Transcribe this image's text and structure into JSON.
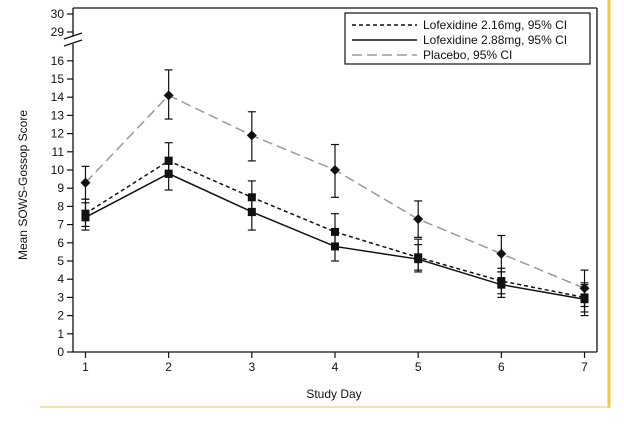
{
  "colors": {
    "background": "#ffffff",
    "frame": "#111111",
    "right_accent_border": "#f2c744",
    "bottom_accent_line": "#f6dc7e"
  },
  "chart_data": {
    "type": "line",
    "title": "",
    "xlabel": "Study Day",
    "ylabel": "Mean SOWS-Gossop Score",
    "x": [
      1,
      2,
      3,
      4,
      5,
      6,
      7
    ],
    "xlim": [
      0.85,
      7.15
    ],
    "ylim": [
      0,
      30
    ],
    "y_axis_break": [
      16,
      29
    ],
    "yticks_lower": [
      0,
      1,
      2,
      3,
      4,
      5,
      6,
      7,
      8,
      9,
      10,
      11,
      12,
      13,
      14,
      15,
      16
    ],
    "yticks_upper": [
      29,
      30
    ],
    "grid": false,
    "legend_position": "top-right",
    "series": [
      {
        "name": "Lofexidine 2.16mg, 95% CI",
        "line_style": "short-dash",
        "color": "#111111",
        "marker": "square",
        "values": [
          7.6,
          10.5,
          8.5,
          6.6,
          5.2,
          3.9,
          3.0
        ],
        "ci_low": [
          6.9,
          9.6,
          7.5,
          5.8,
          4.5,
          3.2,
          2.2
        ],
        "ci_high": [
          8.4,
          11.5,
          9.4,
          7.6,
          6.2,
          4.6,
          3.8
        ]
      },
      {
        "name": "Lofexidine 2.88mg, 95% CI",
        "line_style": "solid",
        "color": "#111111",
        "marker": "square",
        "values": [
          7.4,
          9.8,
          7.7,
          5.8,
          5.1,
          3.7,
          2.9
        ],
        "ci_low": [
          6.7,
          8.9,
          6.7,
          5.0,
          4.4,
          3.0,
          2.0
        ],
        "ci_high": [
          8.2,
          10.7,
          8.6,
          6.7,
          5.9,
          4.4,
          3.7
        ]
      },
      {
        "name": "Placebo, 95% CI",
        "line_style": "long-dash",
        "color": "#9a9a9a",
        "marker": "diamond",
        "values": [
          9.3,
          14.1,
          11.9,
          10.0,
          7.3,
          5.4,
          3.5
        ],
        "ci_low": [
          8.4,
          12.8,
          10.5,
          8.5,
          6.3,
          4.4,
          2.5
        ],
        "ci_high": [
          10.2,
          15.5,
          13.2,
          11.4,
          8.3,
          6.4,
          4.5
        ]
      }
    ]
  }
}
